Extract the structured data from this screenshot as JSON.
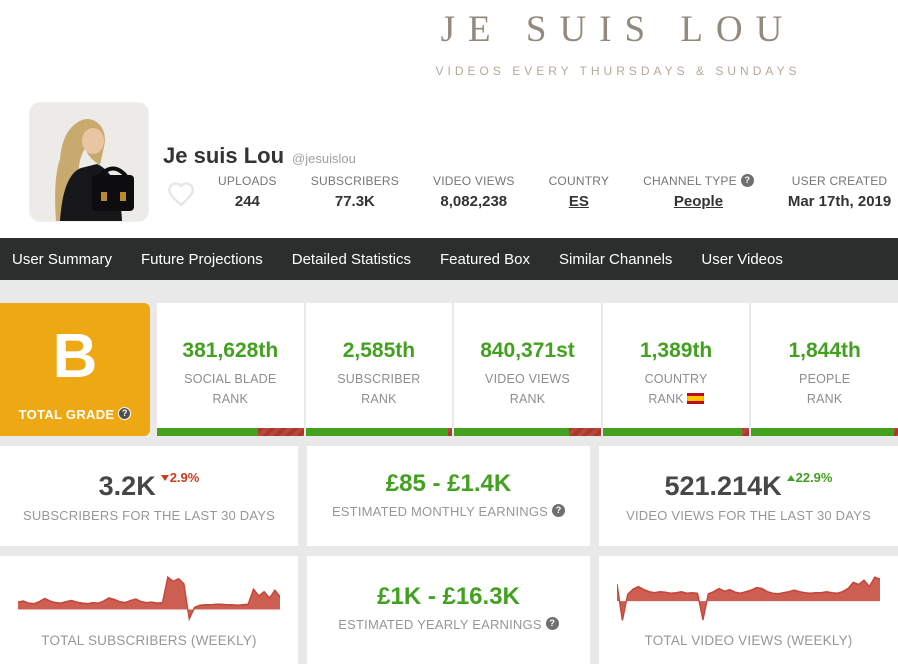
{
  "banner": {
    "logo": "JE SUIS LOU",
    "tagline": "VIDEOS EVERY THURSDAYS & SUNDAYS"
  },
  "profile": {
    "name": "Je suis Lou",
    "handle": "@jesuislou",
    "uploads_label": "UPLOADS",
    "uploads_value": "244",
    "subscribers_label": "SUBSCRIBERS",
    "subscribers_value": "77.3K",
    "video_views_label": "VIDEO VIEWS",
    "video_views_value": "8,082,238",
    "country_label": "COUNTRY",
    "country_value": "ES",
    "channel_type_label": "CHANNEL TYPE",
    "channel_type_value": "People",
    "user_created_label": "USER CREATED",
    "user_created_value": "Mar 17th, 2019"
  },
  "nav": {
    "items": [
      "User Summary",
      "Future Projections",
      "Detailed Statistics",
      "Featured Box",
      "Similar Channels",
      "User Videos"
    ]
  },
  "grade": {
    "letter": "B",
    "label": "TOTAL GRADE"
  },
  "ranks": [
    {
      "value": "381,628th",
      "label_top": "SOCIAL BLADE",
      "label_bottom": "RANK",
      "green_pct": 69
    },
    {
      "value": "2,585th",
      "label_top": "SUBSCRIBER",
      "label_bottom": "RANK",
      "green_pct": 97
    },
    {
      "value": "840,371st",
      "label_top": "VIDEO VIEWS",
      "label_bottom": "RANK",
      "green_pct": 78
    },
    {
      "value": "1,389th",
      "label_top": "COUNTRY",
      "label_bottom": "RANK",
      "flag": "ES",
      "green_pct": 95
    },
    {
      "value": "1,844th",
      "label_top": "PEOPLE",
      "label_bottom": "RANK",
      "green_pct": 97
    }
  ],
  "cards": {
    "subs30": {
      "value": "3.2K",
      "change": "2.9%",
      "direction": "down",
      "label": "SUBSCRIBERS FOR THE LAST 30 DAYS"
    },
    "monthly": {
      "value": "£85 - £1.4K",
      "label": "ESTIMATED MONTHLY EARNINGS"
    },
    "views30": {
      "value": "521.214K",
      "change": "22.9%",
      "direction": "up",
      "label": "VIDEO VIEWS FOR THE LAST 30 DAYS"
    },
    "subs_weekly": {
      "label": "TOTAL SUBSCRIBERS (WEEKLY)"
    },
    "yearly": {
      "value": "£1K - £16.3K",
      "label": "ESTIMATED YEARLY EARNINGS"
    },
    "views_weekly": {
      "label": "TOTAL VIDEO VIEWS (WEEKLY)"
    }
  },
  "chart_data": [
    {
      "type": "area",
      "title": "TOTAL SUBSCRIBERS (WEEKLY)",
      "xlabel": "weeks (oldest to newest, no axis shown)",
      "ylabel": "relative level 0-100 (sparkline, no axis shown)",
      "ylim": [
        0,
        100
      ],
      "baseline": 26,
      "values": [
        40,
        42,
        38,
        37,
        41,
        47,
        42,
        39,
        38,
        41,
        43,
        40,
        38,
        37,
        39,
        38,
        42,
        48,
        45,
        41,
        39,
        43,
        46,
        41,
        39,
        40,
        38,
        39,
        88,
        80,
        85,
        75,
        8,
        30,
        34,
        35,
        35,
        36,
        36,
        35,
        35,
        34,
        35,
        36,
        65,
        52,
        60,
        48,
        63,
        50
      ]
    },
    {
      "type": "area",
      "title": "TOTAL VIDEO VIEWS (WEEKLY)",
      "xlabel": "weeks (oldest to newest, no axis shown)",
      "ylabel": "relative level 0-100 (sparkline, no axis shown)",
      "ylim": [
        0,
        100
      ],
      "baseline": 42,
      "values": [
        75,
        5,
        55,
        65,
        70,
        64,
        60,
        58,
        60,
        59,
        57,
        58,
        60,
        57,
        58,
        57,
        6,
        56,
        60,
        66,
        61,
        64,
        59,
        57,
        60,
        63,
        68,
        66,
        60,
        57,
        56,
        58,
        60,
        63,
        60,
        58,
        57,
        58,
        58,
        60,
        58,
        57,
        60,
        66,
        78,
        74,
        82,
        70,
        88,
        84
      ]
    }
  ],
  "colors": {
    "accent_green": "#43a120",
    "alert_red": "#cc3a1b",
    "grade_orange": "#eda813",
    "nav_bg": "#2c2e2d",
    "spark_fill": "#cd5f52",
    "spark_stroke": "#c4473a",
    "banner_text": "#938a7e"
  }
}
